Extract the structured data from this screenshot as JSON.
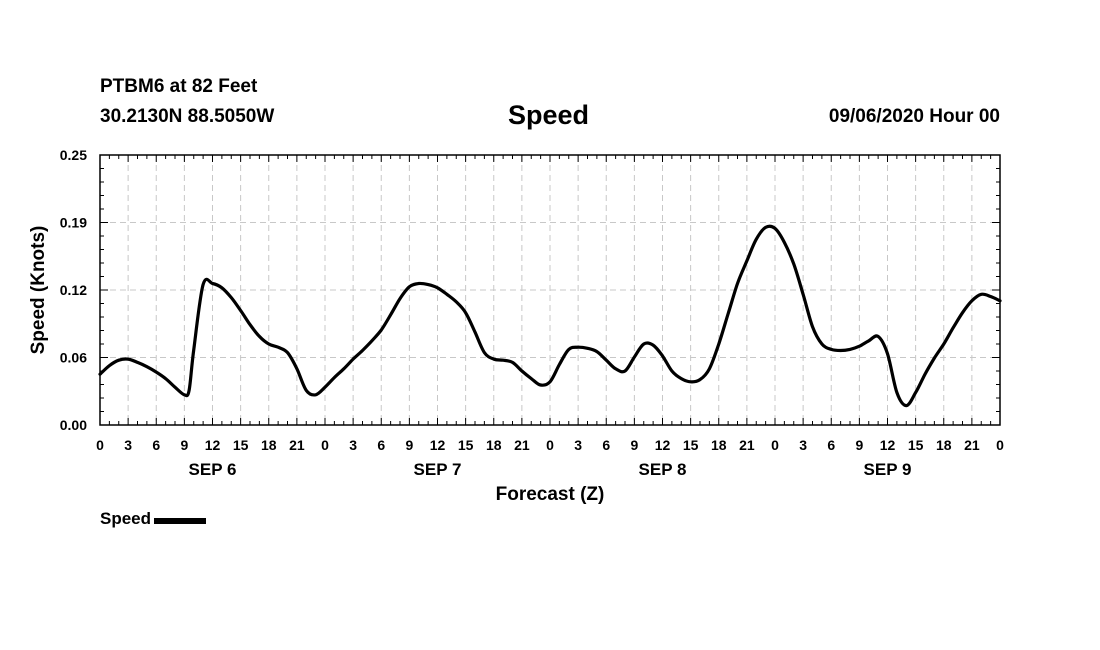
{
  "header": {
    "station": "PTBM6 at 82 Feet",
    "coords": "30.2130N 88.5050W",
    "datetime": "09/06/2020 Hour 00"
  },
  "chart_data": {
    "type": "line",
    "title": "Speed",
    "xlabel": "Forecast (Z)",
    "ylabel": "Speed (Knots)",
    "ylim": [
      0,
      0.25
    ],
    "xlim": [
      0,
      96
    ],
    "y_ticks": [
      "0.00",
      "0.06",
      "0.12",
      "0.19",
      "0.25"
    ],
    "y_tick_values": [
      0,
      0.0625,
      0.125,
      0.1875,
      0.25
    ],
    "x_tick_labels": [
      "0",
      "3",
      "6",
      "9",
      "12",
      "15",
      "18",
      "21",
      "0",
      "3",
      "6",
      "9",
      "12",
      "15",
      "18",
      "21",
      "0",
      "3",
      "6",
      "9",
      "12",
      "15",
      "18",
      "21",
      "0",
      "3",
      "6",
      "9",
      "12",
      "15",
      "18",
      "21",
      "0"
    ],
    "day_labels": [
      {
        "label": "SEP 6",
        "x": 12
      },
      {
        "label": "SEP 7",
        "x": 36
      },
      {
        "label": "SEP 8",
        "x": 60
      },
      {
        "label": "SEP 9",
        "x": 84
      }
    ],
    "grid": true,
    "legend": "bottom-left",
    "series": [
      {
        "name": "Speed",
        "color": "#000000",
        "x": [
          0,
          1,
          2,
          3,
          4,
          5,
          6,
          7,
          8,
          9,
          9.5,
          10,
          11,
          12,
          13,
          14,
          15,
          16,
          17,
          18,
          19,
          20,
          21,
          22,
          23,
          24,
          25,
          26,
          27,
          28,
          29,
          30,
          31,
          32,
          33,
          34,
          35,
          36,
          37,
          38,
          39,
          40,
          41,
          42,
          43,
          44,
          45,
          46,
          47,
          48,
          49,
          50,
          51,
          52,
          53,
          54,
          55,
          56,
          57,
          58,
          59,
          60,
          61,
          62,
          63,
          64,
          65,
          66,
          67,
          68,
          69,
          70,
          71,
          72,
          73,
          74,
          75,
          76,
          77,
          78,
          79,
          80,
          81,
          82,
          83,
          84,
          85,
          86,
          87,
          88,
          89,
          90,
          91,
          92,
          93,
          94,
          95,
          96
        ],
        "y": [
          0.047,
          0.055,
          0.06,
          0.061,
          0.058,
          0.054,
          0.049,
          0.043,
          0.035,
          0.028,
          0.032,
          0.07,
          0.13,
          0.131,
          0.127,
          0.118,
          0.106,
          0.093,
          0.082,
          0.075,
          0.072,
          0.067,
          0.052,
          0.032,
          0.028,
          0.035,
          0.044,
          0.052,
          0.061,
          0.069,
          0.078,
          0.088,
          0.102,
          0.117,
          0.128,
          0.131,
          0.13,
          0.127,
          0.121,
          0.114,
          0.104,
          0.086,
          0.067,
          0.061,
          0.06,
          0.058,
          0.05,
          0.043,
          0.037,
          0.04,
          0.056,
          0.07,
          0.072,
          0.071,
          0.068,
          0.06,
          0.052,
          0.05,
          0.063,
          0.075,
          0.074,
          0.064,
          0.05,
          0.043,
          0.04,
          0.042,
          0.052,
          0.075,
          0.103,
          0.131,
          0.152,
          0.172,
          0.183,
          0.182,
          0.169,
          0.149,
          0.121,
          0.091,
          0.075,
          0.07,
          0.069,
          0.07,
          0.073,
          0.078,
          0.082,
          0.066,
          0.03,
          0.018,
          0.03,
          0.047,
          0.062,
          0.075,
          0.09,
          0.104,
          0.115,
          0.121,
          0.119,
          0.115
        ]
      }
    ]
  }
}
